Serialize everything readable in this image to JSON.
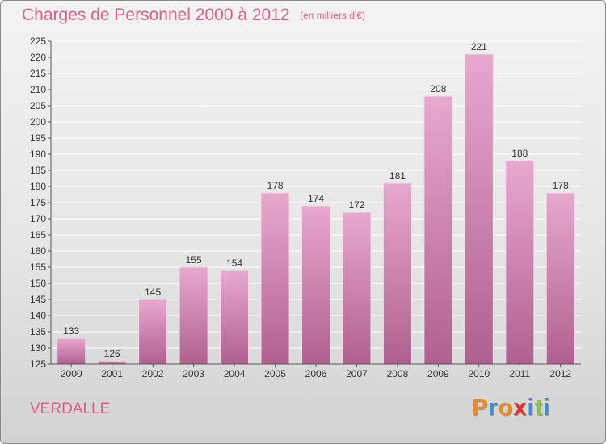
{
  "header": {
    "title": "Charges de Personnel 2000 à 2012",
    "subtitle": "(en milliers d'€)"
  },
  "footer": {
    "commune": "VERDALLE",
    "logo_text": "Proxiti",
    "logo_colors": [
      "#f08a1c",
      "#3a8fd8",
      "#f08a1c",
      "#e0302a",
      "#3a8fd8",
      "#8cc63f",
      "#3a8fd8"
    ]
  },
  "colors": {
    "title": "#e05a8a",
    "bar_top": "#e8a8cf",
    "bar_bottom": "#b06090",
    "gridline": "#ffffff"
  },
  "chart_data": {
    "type": "bar",
    "categories": [
      "2000",
      "2001",
      "2002",
      "2003",
      "2004",
      "2005",
      "2006",
      "2007",
      "2008",
      "2009",
      "2010",
      "2011",
      "2012"
    ],
    "values": [
      133,
      126,
      145,
      155,
      154,
      178,
      174,
      172,
      181,
      208,
      221,
      188,
      178
    ],
    "ylim": [
      125,
      225
    ],
    "ytick_step": 5,
    "grid": true,
    "data_labels": true
  }
}
